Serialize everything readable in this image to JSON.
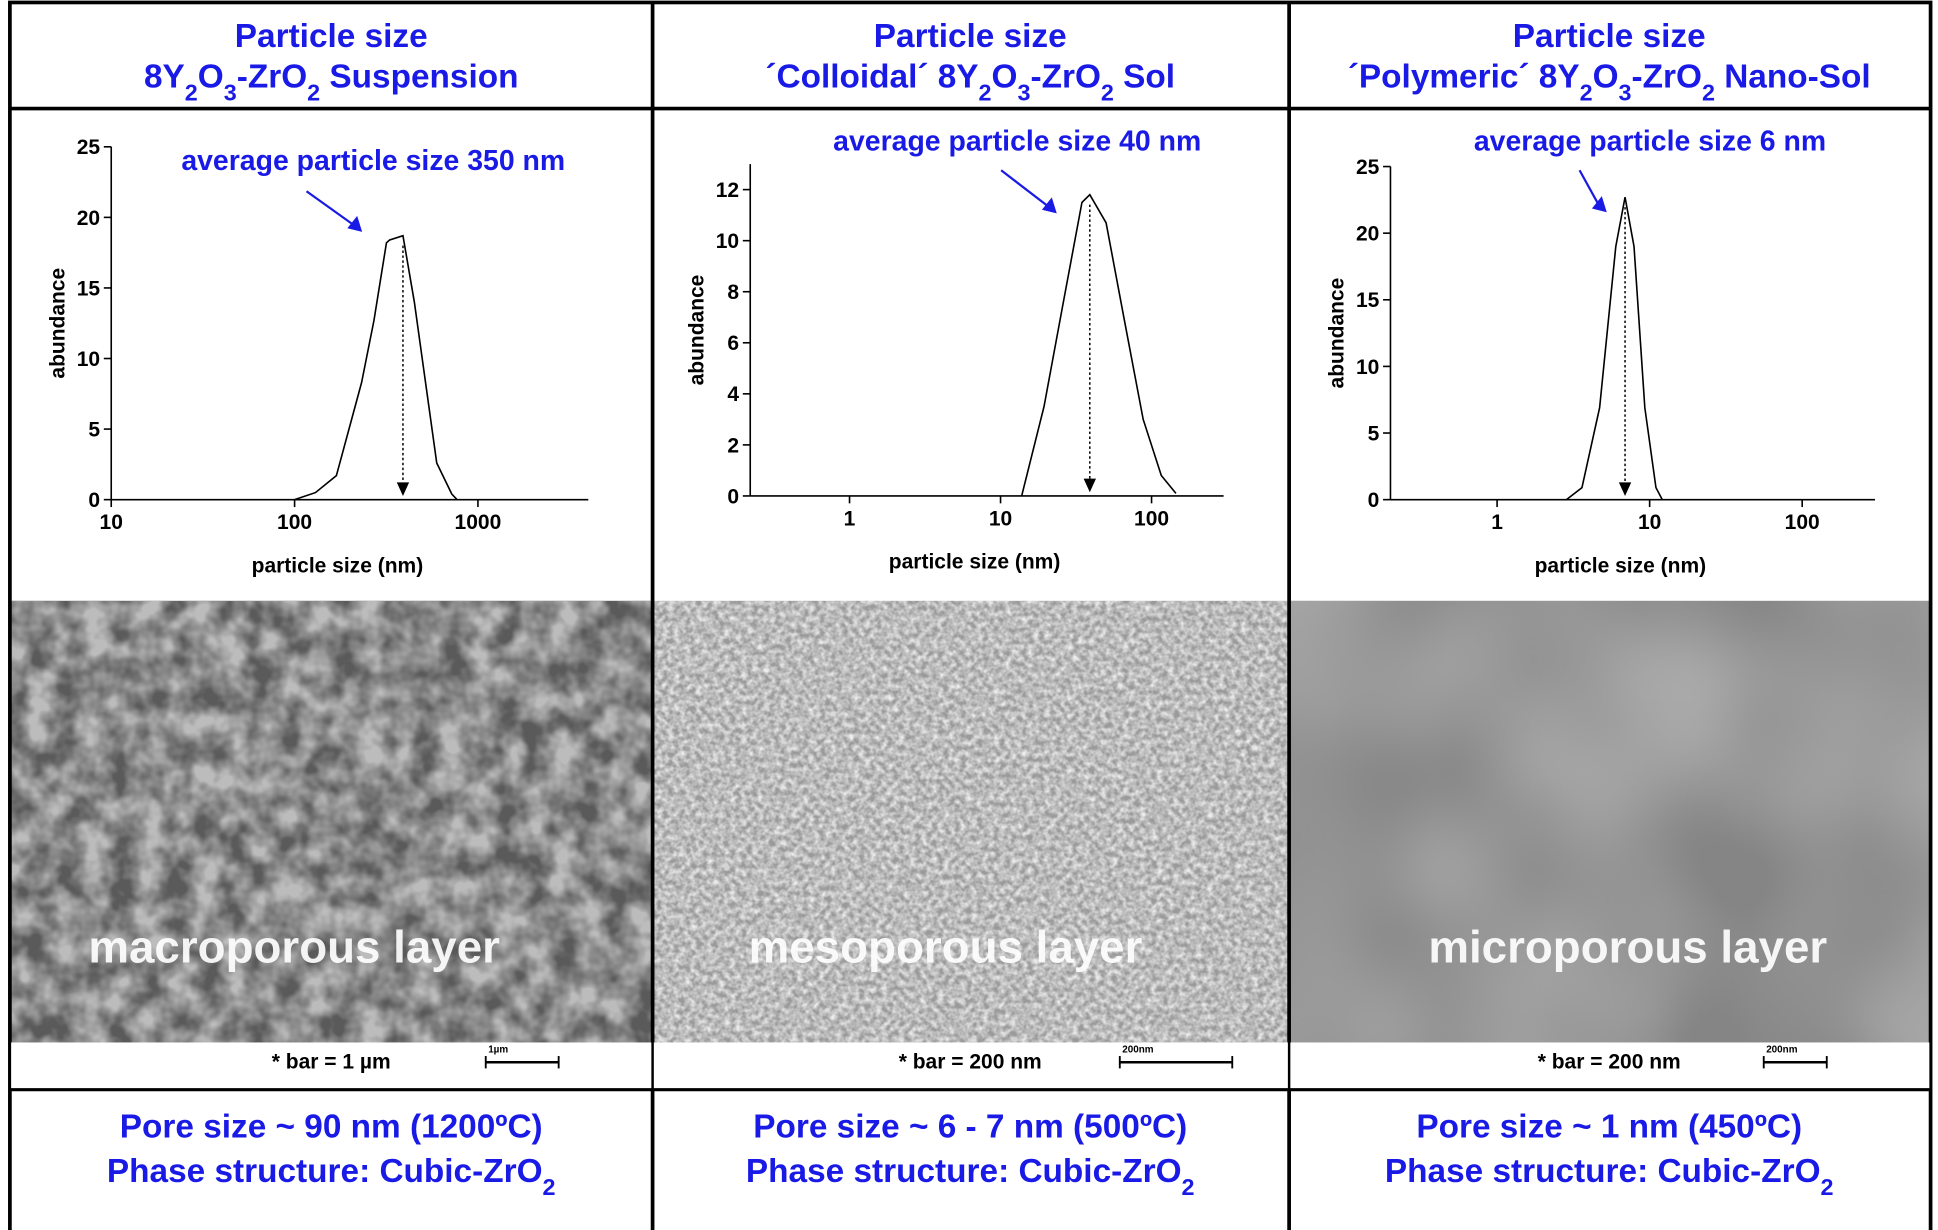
{
  "chart_data": [
    {
      "type": "line",
      "xscale": "log",
      "x_label": "particle size (nm)",
      "y_label": "abundance",
      "annotation": "average particle size 350 nm",
      "color": "#000000",
      "x": [
        100,
        130,
        169,
        232,
        271,
        317,
        330,
        390,
        450,
        596,
        720,
        770
      ],
      "values": [
        0,
        0.5,
        1.7,
        8.3,
        12.7,
        18.2,
        18.4,
        18.7,
        14,
        2.6,
        0.4,
        0
      ],
      "xlim": [
        10,
        4000
      ],
      "ylim": [
        0,
        25
      ],
      "xticks": [
        10,
        100,
        1000
      ],
      "yticks": [
        0,
        5,
        10,
        15,
        20,
        25
      ]
    },
    {
      "type": "line",
      "xscale": "log",
      "x_label": "particle size (nm)",
      "y_label": "abundance",
      "annotation": "average particle size 40 nm",
      "color": "#000000",
      "x": [
        13.8,
        19.4,
        25.7,
        34.6,
        39,
        50,
        66,
        88,
        116,
        145
      ],
      "values": [
        0,
        3.5,
        7.4,
        11.5,
        11.8,
        10.7,
        6.9,
        3.0,
        0.8,
        0.1
      ],
      "xlim": [
        0.22,
        300
      ],
      "ylim": [
        0,
        13
      ],
      "xticks": [
        1,
        10,
        100
      ],
      "yticks": [
        0,
        2,
        4,
        6,
        8,
        10,
        12
      ]
    },
    {
      "type": "line",
      "xscale": "log",
      "x_label": "particle size (nm)",
      "y_label": "abundance",
      "annotation": "average particle size 6 nm",
      "color": "#000000",
      "x": [
        2.85,
        3.6,
        4.7,
        6.0,
        6.9,
        7.9,
        9.3,
        11,
        12.1
      ],
      "values": [
        0,
        0.9,
        6.9,
        19,
        22.7,
        19,
        6.9,
        0.9,
        0
      ],
      "xlim": [
        0.2,
        300
      ],
      "ylim": [
        0,
        25
      ],
      "xticks": [
        1,
        10,
        100
      ],
      "yticks": [
        0,
        5,
        10,
        15,
        20,
        25
      ]
    }
  ],
  "panels": [
    {
      "header": [
        "Particle size",
        "8Y2O3-ZrO2 Suspension"
      ],
      "layer": "macroporous layer",
      "scale_note": "* bar = 1 µm",
      "scale_bar": "1µm",
      "footer": [
        "Pore size ~ 90 nm (1200ºC)",
        "Phase structure: Cubic-ZrO2"
      ]
    },
    {
      "header": [
        "Particle size",
        "´Colloidal´ 8Y2O3-ZrO2 Sol"
      ],
      "layer": "mesoporous layer",
      "scale_note": "* bar = 200 nm",
      "scale_bar": "200nm",
      "footer": [
        "Pore size ~ 6 - 7 nm (500ºC)",
        "Phase structure: Cubic-ZrO2"
      ]
    },
    {
      "header": [
        "Particle size",
        "´Polymeric´ 8Y2O3-ZrO2 Nano-Sol"
      ],
      "layer": "microporous layer",
      "scale_note": "* bar = 200 nm",
      "scale_bar": "200nm",
      "footer": [
        "Pore size ~ 1 nm (450ºC)",
        "Phase structure: Cubic-ZrO2"
      ]
    }
  ]
}
